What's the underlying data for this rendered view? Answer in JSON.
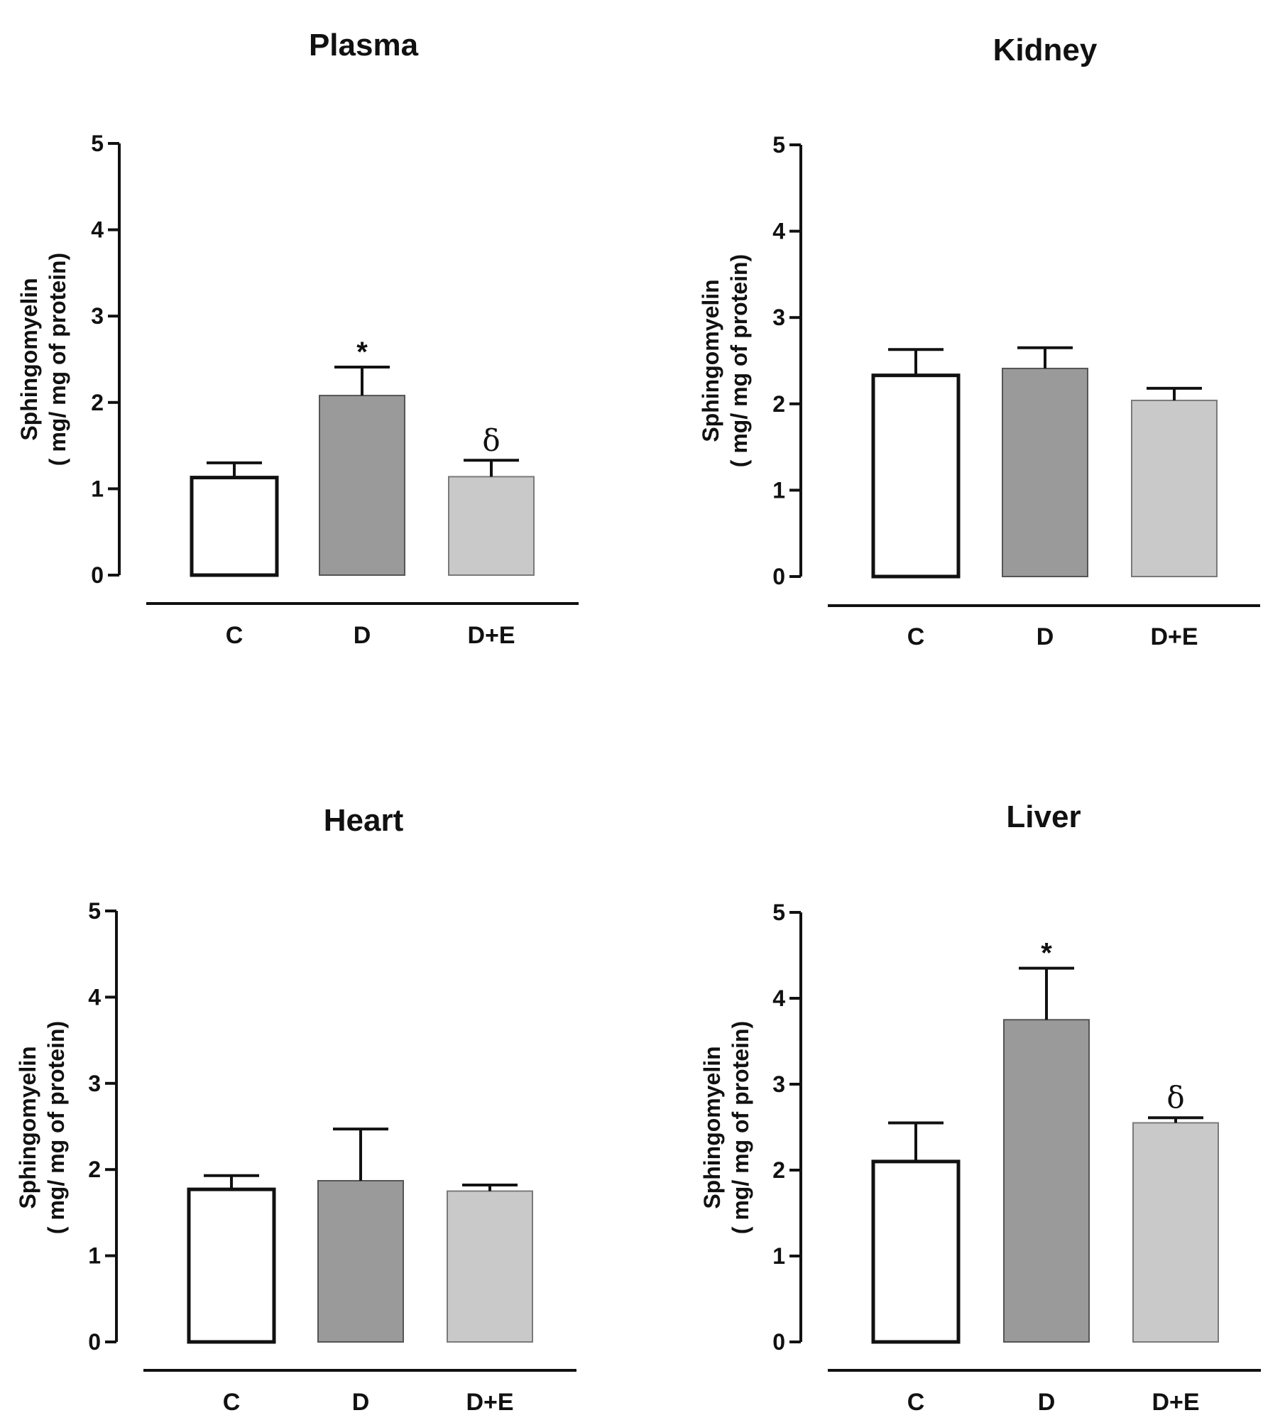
{
  "chart_data": [
    {
      "type": "bar",
      "title": "Plasma",
      "ylabel": [
        "Sphingomyelin",
        "( mg/ mg of  protein)"
      ],
      "ylim": [
        0,
        5
      ],
      "yticks": [
        0,
        1,
        2,
        3,
        4,
        5
      ],
      "categories": [
        "C",
        "D",
        "D+E"
      ],
      "values": [
        1.13,
        2.08,
        1.14
      ],
      "errors": [
        0.17,
        0.33,
        0.19
      ],
      "annotations": [
        "",
        "*",
        "δ"
      ],
      "fills": [
        "#ffffff",
        "#9a9a9a",
        "#c9c9c9"
      ],
      "strokes": [
        "#111111",
        "#555555",
        "#7a7a7a"
      ]
    },
    {
      "type": "bar",
      "title": "Kidney",
      "ylabel": [
        "Sphingomyelin",
        "( mg/ mg of  protein)"
      ],
      "ylim": [
        0,
        5
      ],
      "yticks": [
        0,
        1,
        2,
        3,
        4,
        5
      ],
      "categories": [
        "C",
        "D",
        "D+E"
      ],
      "values": [
        2.33,
        2.41,
        2.04
      ],
      "errors": [
        0.3,
        0.24,
        0.14
      ],
      "annotations": [
        "",
        "",
        ""
      ],
      "fills": [
        "#ffffff",
        "#9a9a9a",
        "#c9c9c9"
      ],
      "strokes": [
        "#111111",
        "#555555",
        "#7a7a7a"
      ]
    },
    {
      "type": "bar",
      "title": "Heart",
      "ylabel": [
        "Sphingomyelin",
        "( mg/ mg of  protein)"
      ],
      "ylim": [
        0,
        5
      ],
      "yticks": [
        0,
        1,
        2,
        3,
        4,
        5
      ],
      "categories": [
        "C",
        "D",
        "D+E"
      ],
      "values": [
        1.77,
        1.87,
        1.75
      ],
      "errors": [
        0.16,
        0.6,
        0.07
      ],
      "annotations": [
        "",
        "",
        ""
      ],
      "fills": [
        "#ffffff",
        "#9a9a9a",
        "#c9c9c9"
      ],
      "strokes": [
        "#111111",
        "#555555",
        "#7a7a7a"
      ]
    },
    {
      "type": "bar",
      "title": "Liver",
      "ylabel": [
        "Sphingomyelin",
        "( mg/ mg of  protein)"
      ],
      "ylim": [
        0,
        5
      ],
      "yticks": [
        0,
        1,
        2,
        3,
        4,
        5
      ],
      "categories": [
        "C",
        "D",
        "D+E"
      ],
      "values": [
        2.1,
        3.75,
        2.55
      ],
      "errors": [
        0.45,
        0.6,
        0.06
      ],
      "annotations": [
        "",
        "*",
        "δ"
      ],
      "fills": [
        "#ffffff",
        "#9a9a9a",
        "#c9c9c9"
      ],
      "strokes": [
        "#111111",
        "#555555",
        "#7a7a7a"
      ]
    }
  ]
}
